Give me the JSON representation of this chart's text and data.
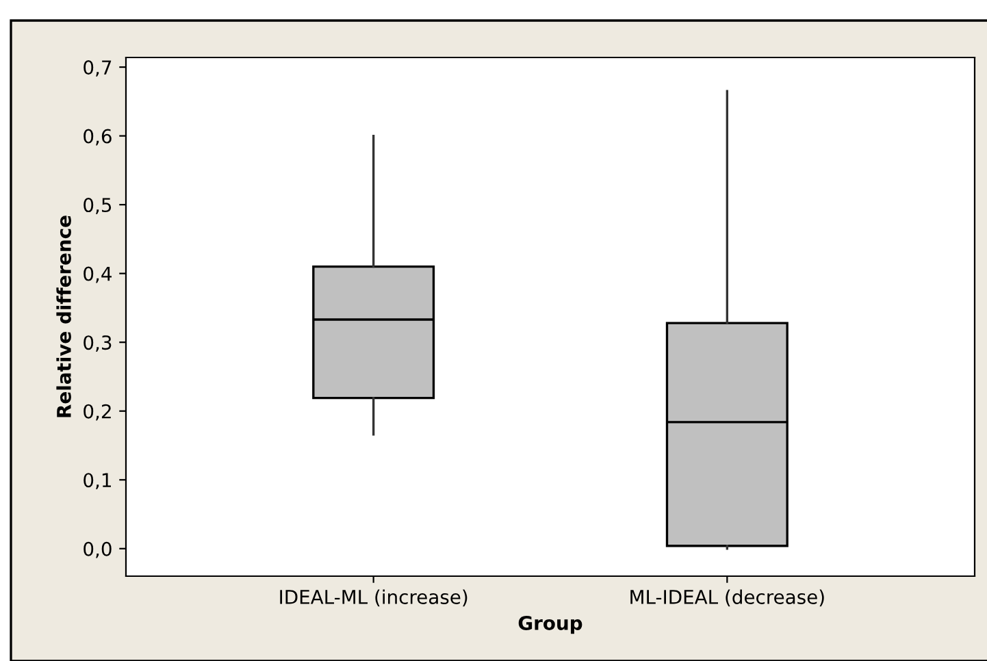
{
  "chart_data": {
    "type": "box",
    "xlabel": "Group",
    "ylabel": "Relative difference",
    "categories": [
      "IDEAL-ML (increase)",
      "ML-IDEAL (decrease)"
    ],
    "boxes": [
      {
        "low": 0.166,
        "q1": 0.219,
        "median": 0.333,
        "q3": 0.41,
        "high": 0.6
      },
      {
        "low": 0.0,
        "q1": 0.004,
        "median": 0.184,
        "q3": 0.328,
        "high": 0.665
      }
    ],
    "color": "#c0c0c0",
    "ylim": [
      -0.04,
      0.714
    ],
    "yticks": [
      {
        "value": 0.0,
        "label": "0,0"
      },
      {
        "value": 0.1,
        "label": "0,1"
      },
      {
        "value": 0.2,
        "label": "0,2"
      },
      {
        "value": 0.3,
        "label": "0,3"
      },
      {
        "value": 0.4,
        "label": "0,4"
      },
      {
        "value": 0.5,
        "label": "0,5"
      },
      {
        "value": 0.6,
        "label": "0,6"
      },
      {
        "value": 0.7,
        "label": "0,7"
      }
    ],
    "grid": false
  }
}
